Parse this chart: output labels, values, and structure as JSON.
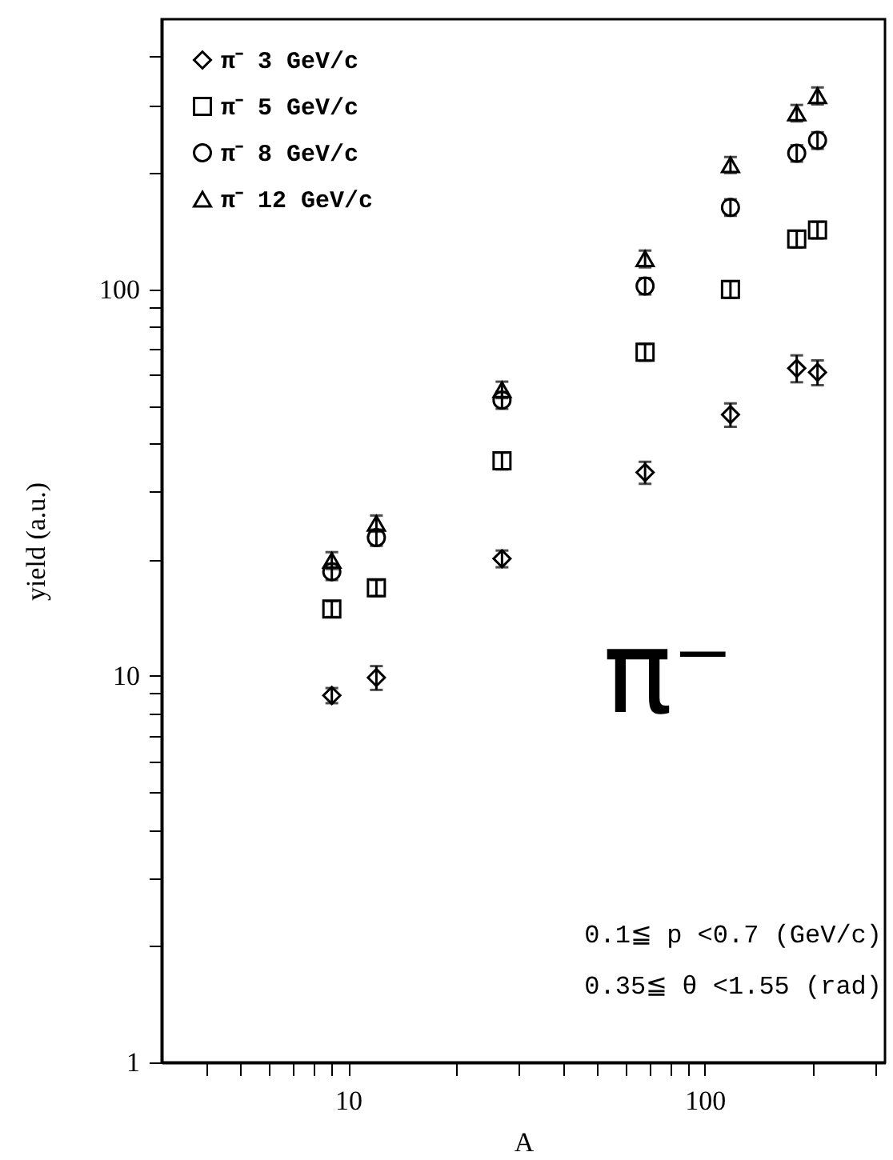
{
  "chart_data": {
    "type": "scatter",
    "xlabel": "A",
    "ylabel": "yield (a.u.)",
    "x": [
      9,
      12,
      27,
      68,
      118,
      181,
      207
    ],
    "series": [
      {
        "name": "π⁻ 3 GeV/c",
        "color": "#000000",
        "marker": "diamond",
        "values": [
          8.9,
          9.9,
          20.1,
          33.6,
          47.4,
          62.5,
          61
        ],
        "errors": [
          0.4,
          0.7,
          1,
          2.2,
          3.3,
          5,
          4.5
        ]
      },
      {
        "name": "π⁻ 5 GeV/c",
        "color": "#000000",
        "marker": "square",
        "values": [
          14.9,
          16.9,
          36,
          68.8,
          100,
          135,
          142.5
        ],
        "errors": [
          0.7,
          0.8,
          1.8,
          3.4,
          5,
          6.7,
          7
        ]
      },
      {
        "name": "π⁻ 8 GeV/c",
        "color": "#000000",
        "marker": "circle",
        "values": [
          18.6,
          22.8,
          51.7,
          102,
          163,
          225,
          243
        ],
        "errors": [
          0.9,
          1.1,
          2.6,
          5,
          8,
          11,
          12
        ]
      },
      {
        "name": "π⁻ 12 GeV/c",
        "color": "#000000",
        "marker": "triangle",
        "values": [
          19.9,
          24.8,
          55,
          120,
          210,
          286,
          317
        ],
        "errors": [
          1,
          1.2,
          2.7,
          6,
          10,
          14,
          16
        ]
      }
    ],
    "log": "xy",
    "xlim": [
      3,
      320
    ],
    "ylim": [
      1,
      500
    ],
    "xticks": [
      {
        "value": 4,
        "label": null
      },
      {
        "value": 5,
        "label": null
      },
      {
        "value": 6,
        "label": null
      },
      {
        "value": 7,
        "label": null
      },
      {
        "value": 8,
        "label": null
      },
      {
        "value": 9,
        "label": null
      },
      10,
      {
        "value": 20,
        "label": null
      },
      {
        "value": 30,
        "label": null
      },
      {
        "value": 40,
        "label": null
      },
      {
        "value": 50,
        "label": null
      },
      {
        "value": 60,
        "label": null
      },
      {
        "value": 70,
        "label": null
      },
      {
        "value": 80,
        "label": null
      },
      {
        "value": 90,
        "label": null
      },
      100,
      {
        "value": 200,
        "label": null
      },
      {
        "value": 300,
        "label": null
      }
    ],
    "yticks": [
      1,
      {
        "value": 2,
        "label": null
      },
      {
        "value": 3,
        "label": null
      },
      {
        "value": 4,
        "label": null
      },
      {
        "value": 5,
        "label": null
      },
      {
        "value": 6,
        "label": null
      },
      {
        "value": 7,
        "label": null
      },
      {
        "value": 8,
        "label": null
      },
      {
        "value": 9,
        "label": null
      },
      10,
      {
        "value": 20,
        "label": null
      },
      {
        "value": 30,
        "label": null
      },
      {
        "value": 40,
        "label": null
      },
      {
        "value": 50,
        "label": null
      },
      {
        "value": 60,
        "label": null
      },
      {
        "value": 70,
        "label": null
      },
      {
        "value": 80,
        "label": null
      },
      {
        "value": 90,
        "label": null
      },
      100,
      {
        "value": 200,
        "label": null
      },
      {
        "value": 300,
        "label": null
      },
      {
        "value": 400,
        "label": null
      }
    ],
    "grid": false,
    "legend": "top left",
    "annotations": [
      "π⁻",
      "0.1≦ p <0.7  (GeV/c)",
      "0.35≦ θ <1.55  (rad)"
    ]
  }
}
